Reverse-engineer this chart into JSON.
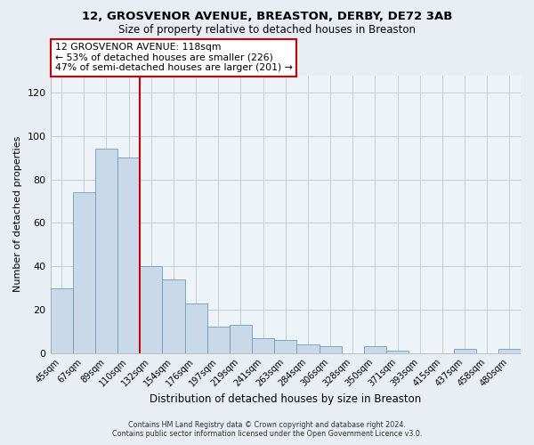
{
  "title": "12, GROSVENOR AVENUE, BREASTON, DERBY, DE72 3AB",
  "subtitle": "Size of property relative to detached houses in Breaston",
  "xlabel": "Distribution of detached houses by size in Breaston",
  "ylabel": "Number of detached properties",
  "bar_color": "#c9d9ea",
  "bar_edge_color": "#6a9cbf",
  "categories": [
    "45sqm",
    "67sqm",
    "89sqm",
    "110sqm",
    "132sqm",
    "154sqm",
    "176sqm",
    "197sqm",
    "219sqm",
    "241sqm",
    "263sqm",
    "284sqm",
    "306sqm",
    "328sqm",
    "350sqm",
    "371sqm",
    "393sqm",
    "415sqm",
    "437sqm",
    "458sqm",
    "480sqm"
  ],
  "values": [
    30,
    74,
    94,
    90,
    40,
    34,
    23,
    12,
    13,
    7,
    6,
    4,
    3,
    0,
    3,
    1,
    0,
    0,
    2,
    0,
    2
  ],
  "ylim": [
    0,
    128
  ],
  "yticks": [
    0,
    20,
    40,
    60,
    80,
    100,
    120
  ],
  "red_line_x": 3.5,
  "annotation_title": "12 GROSVENOR AVENUE: 118sqm",
  "annotation_line1": "← 53% of detached houses are smaller (226)",
  "annotation_line2": "47% of semi-detached houses are larger (201) →",
  "annotation_box_color": "#ffffff",
  "annotation_box_edge": "#cc0000",
  "footer1": "Contains HM Land Registry data © Crown copyright and database right 2024.",
  "footer2": "Contains public sector information licensed under the Open Government Licence v3.0.",
  "background_color": "#e8eef4",
  "plot_background": "#eef3f8",
  "grid_color": "#c5cdd6"
}
